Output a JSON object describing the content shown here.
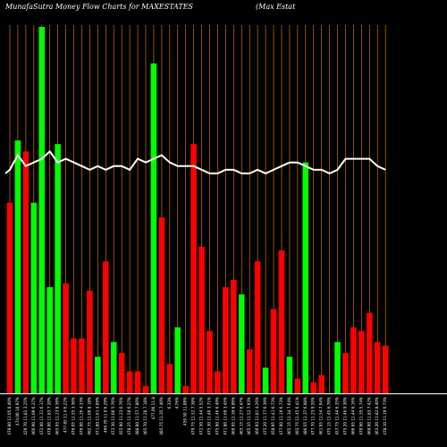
{
  "chart_data": {
    "type": "bar",
    "title": "MunafaSutra  Money Flow  Charts for MAXESTATES",
    "company": "(Max Estat",
    "colors": {
      "background": "#000000",
      "up": "#00ff00",
      "down": "#ff0000",
      "grid": "#c87800",
      "baseline": "#ffffff",
      "line": "#ffffff"
    },
    "categories": [
      "478.80 11.05 8.40%",
      "474.00 10.97%",
      "429.70 11.82 3.25%",
      "466.90 11.09 6.27%",
      "472.00 11.31 6.17%",
      "478.00 11.83 7.20%",
      "465.95 11.23 8.36%",
      "477.85 11.4 6.22%",
      "476.05 11.55 3.36%",
      "476.00 11.26 4.33%",
      "492.75 11.09 8.18%",
      "471.80 11.61 4.09%",
      "469.70 11.0 6.29%",
      "472.30 11.00 5.76%",
      "455.90 11.23 6.76%",
      "478.25 11.58 6.27%",
      "488.00 11.57 7.80%",
      "465.70 11.28 7.18%",
      "477.00 11.8",
      "485.75 11.35 7.40%",
      "6.33%",
      "4.76%",
      "459.50 11.08%",
      "479.75 11.52 7.38%",
      "472.50 11.44 5.52%",
      "475.30 11.40 3.71%",
      "475.90 11.46 6.49%",
      "471.80 11.69 3.45%",
      "460.95 11.39 8.99%",
      "463.15 11.27 6.47%",
      "465.35 11.52 7.93%",
      "466.93 11.81 4.26%",
      "475.20 11.77 6.39%",
      "458.95 11.41 6.73%",
      "477.00 11.19 6.73%",
      "465.15 11.34 7.64%",
      "493.75 11.45 6.41%",
      "486.55 11.37 6.08%",
      "477.70 11.23 9.20%",
      "461.95 11.54 7.94%",
      "475.15 11.45 6.70%",
      "457.75 11.44 6.35%",
      "475.20 11.46 9.30%",
      "466.95 11.44 6.16%",
      "470.90 11.35 5.74%",
      "469.00 11.83 7.42%",
      "463.20 11.82 8.40%",
      "478.10 11.19 6.73%"
    ],
    "values": [
      52,
      69,
      66,
      52,
      100,
      29,
      68,
      30,
      15,
      15,
      28,
      10,
      36,
      14,
      11,
      6,
      6,
      2,
      90,
      48,
      8,
      18,
      2,
      68,
      40,
      17,
      6,
      29,
      31,
      27,
      12,
      36,
      7,
      23,
      39,
      10,
      4,
      63,
      3,
      5,
      0,
      14,
      11,
      18,
      17,
      22,
      14,
      13
    ],
    "directions": [
      "down",
      "up",
      "down",
      "up",
      "up",
      "up",
      "up",
      "down",
      "down",
      "down",
      "down",
      "up",
      "down",
      "up",
      "down",
      "down",
      "down",
      "down",
      "up",
      "down",
      "down",
      "up",
      "down",
      "down",
      "down",
      "down",
      "down",
      "down",
      "down",
      "up",
      "down",
      "down",
      "up",
      "down",
      "down",
      "up",
      "down",
      "up",
      "down",
      "down",
      "up",
      "up",
      "down",
      "down",
      "down",
      "down",
      "down",
      "down"
    ],
    "line_values": [
      61,
      65,
      62,
      63,
      64,
      66,
      63,
      64,
      63,
      62,
      61,
      62,
      61,
      62,
      62,
      61,
      64,
      63,
      64,
      65,
      63,
      62,
      62,
      62,
      61,
      60,
      60,
      61,
      61,
      60,
      60,
      61,
      60,
      61,
      62,
      63,
      63,
      62,
      61,
      61,
      60,
      61,
      64,
      64,
      64,
      64,
      62,
      61
    ],
    "ylim": [
      0,
      100
    ],
    "grid": true
  }
}
